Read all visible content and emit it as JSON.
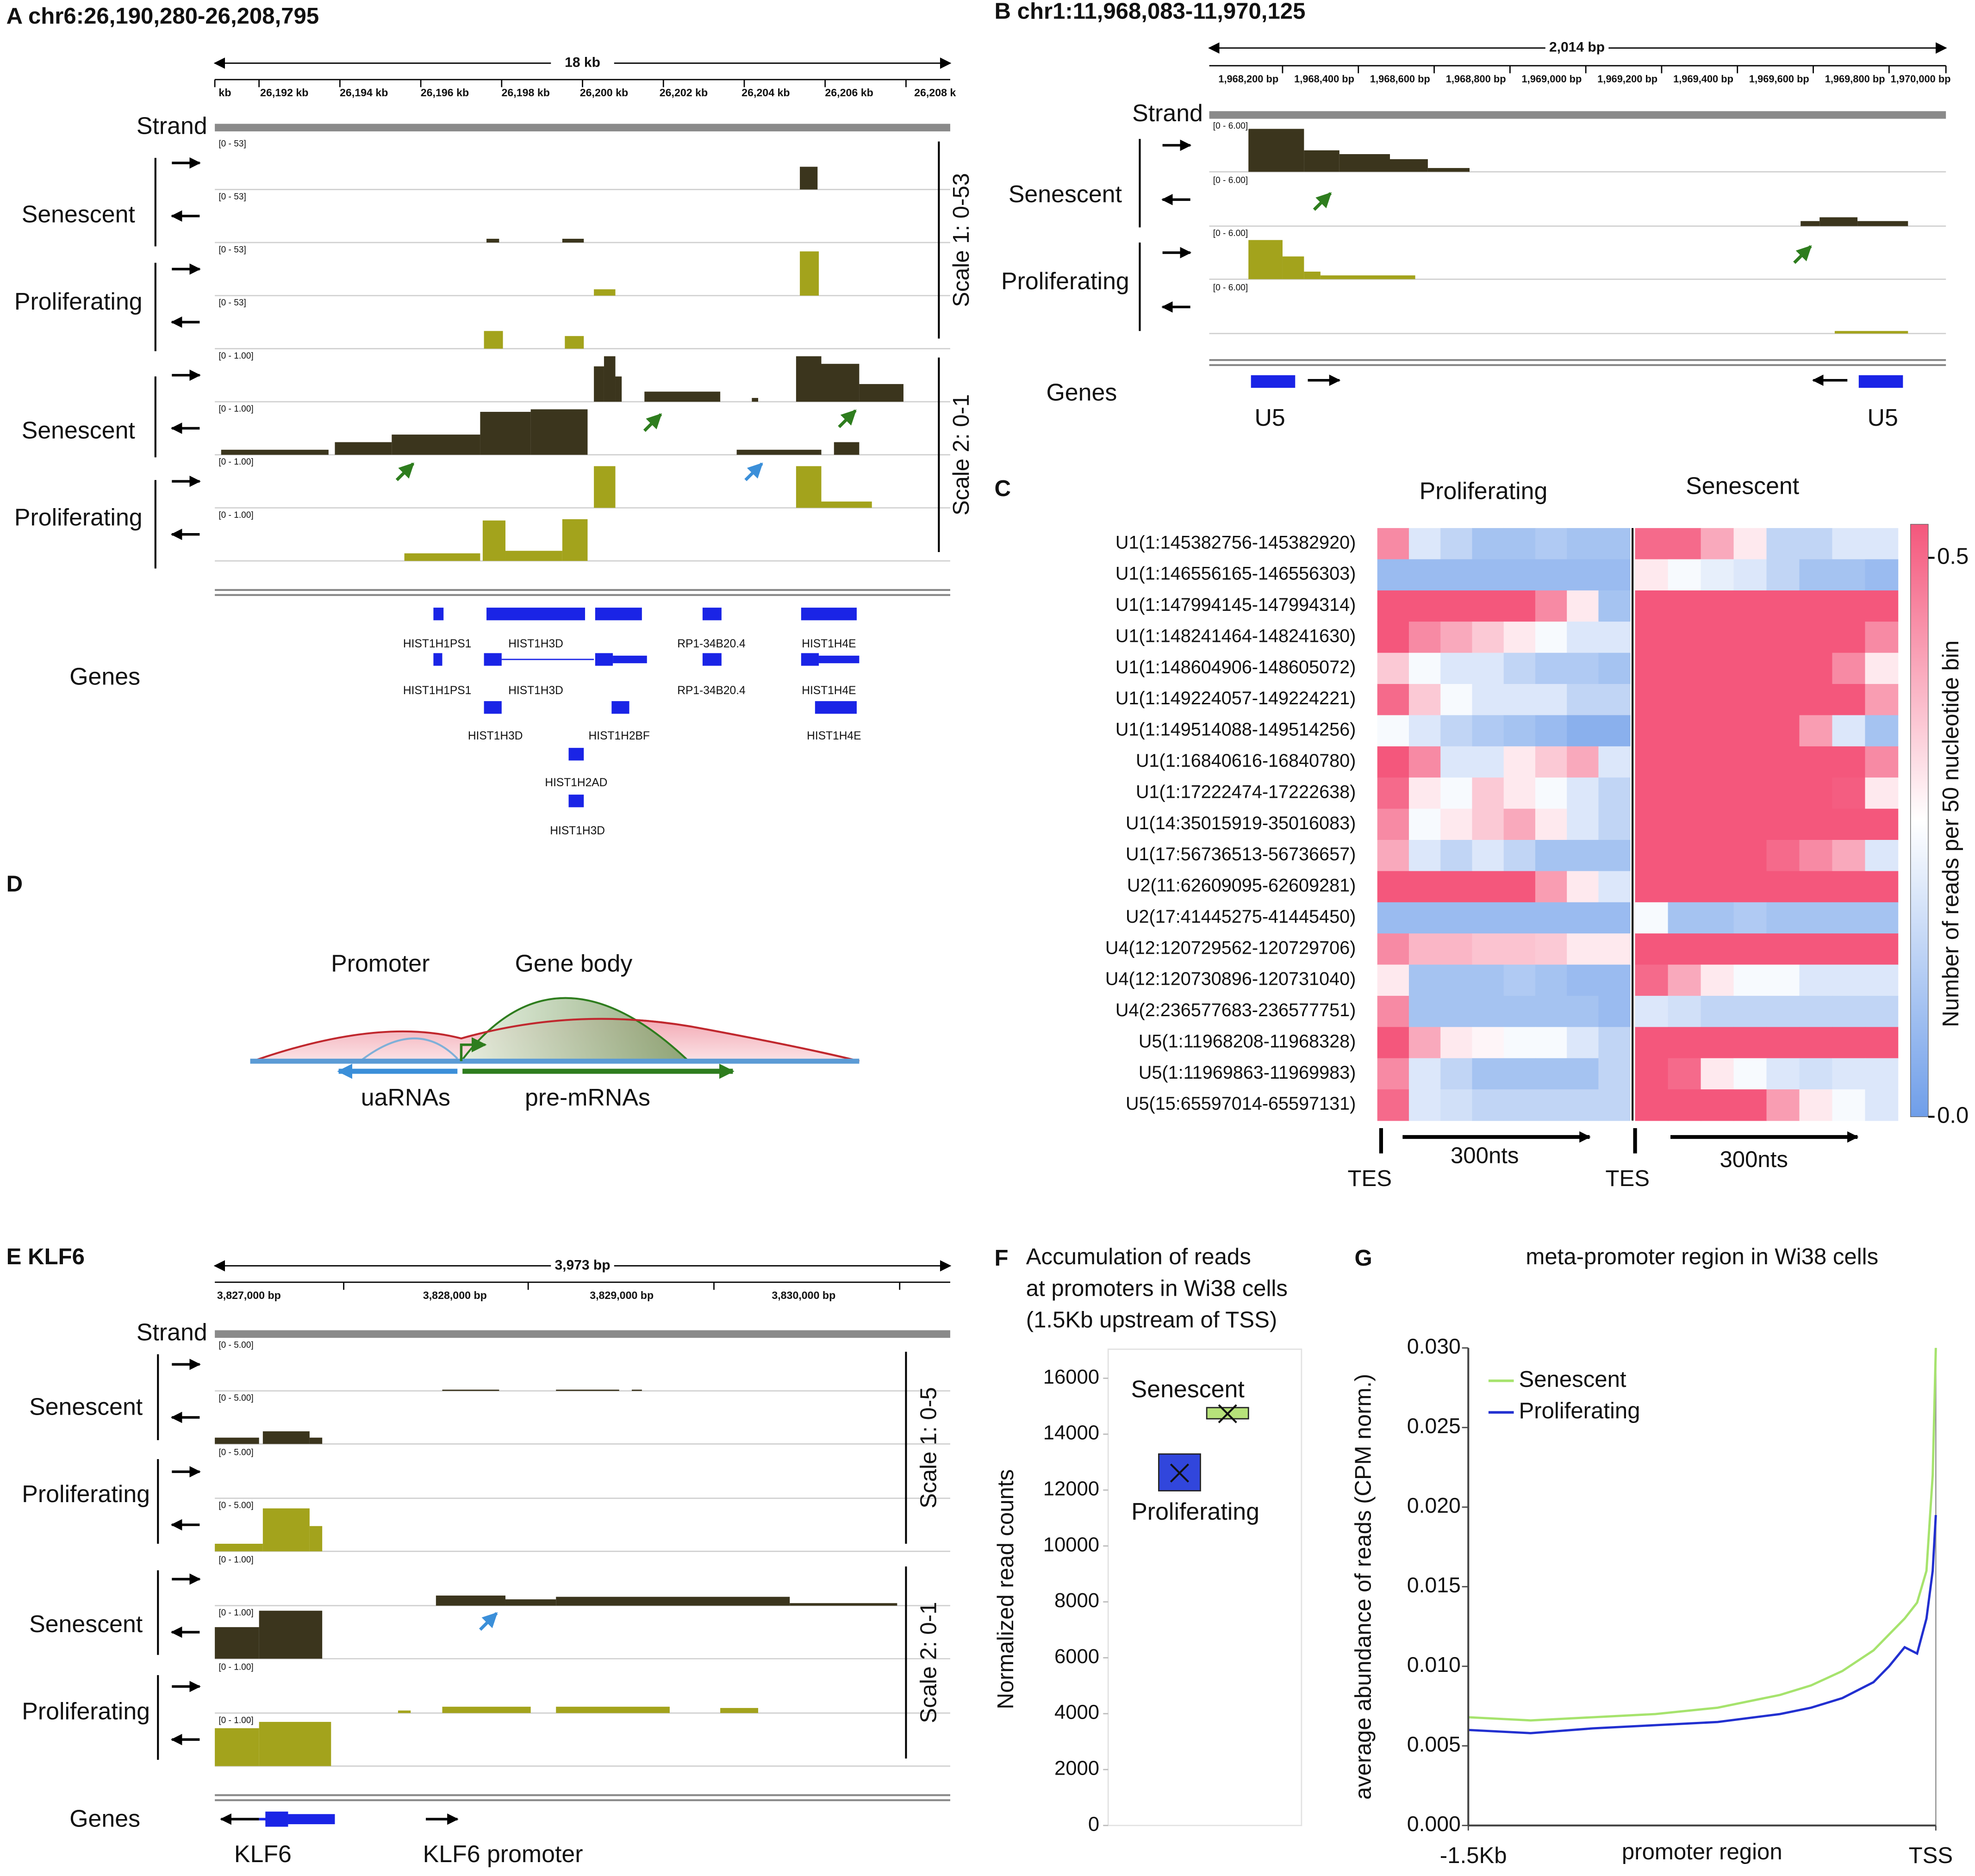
{
  "panels": {
    "a": {
      "title": "A chr6:26,190,280-26,208,795",
      "span": "18 kb",
      "ruler": [
        "kb",
        "26,192 kb",
        "26,194 kb",
        "26,196 kb",
        "26,198 kb",
        "26,200 kb",
        "26,202 kb",
        "26,204 kb",
        "26,206 kb",
        "26,208 k"
      ],
      "strand": "Strand",
      "groups": [
        "Senescent",
        "Proliferating",
        "Senescent",
        "Proliferating"
      ],
      "scales": [
        "Scale 1: 0-53",
        "Scale 2: 0-1"
      ],
      "track_ranges": [
        "[0 - 53]",
        "[0 - 53]",
        "[0 - 53]",
        "[0 - 53]",
        "[0 - 1.00]",
        "[0 - 1.00]",
        "[0 - 1.00]",
        "[0 - 1.00]"
      ],
      "genes_label": "Genes",
      "genes": [
        "HIST1H1PS1",
        "HIST1H3D",
        "RP1-34B20.4",
        "HIST1H4E",
        "HIST1H1PS1",
        "HIST1H3D",
        "RP1-34B20.4",
        "HIST1H4E",
        "HIST1H3D",
        "HIST1H2BF",
        "HIST1H4E",
        "HIST1H2AD",
        "HIST1H3D"
      ]
    },
    "b": {
      "title": "B chr1:11,968,083-11,970,125",
      "span": "2,014 bp",
      "ruler": [
        "1,968,200 bp",
        "1,968,400 bp",
        "1,968,600 bp",
        "1,968,800 bp",
        "1,969,000 bp",
        "1,969,200 bp",
        "1,969,400 bp",
        "1,969,600 bp",
        "1,969,800 bp",
        "1,970,000 bp"
      ],
      "strand": "Strand",
      "groups": [
        "Senescent",
        "Proliferating"
      ],
      "track_ranges": [
        "[0 - 6.00]",
        "[0 - 6.00]",
        "[0 - 6.00]",
        "[0 - 6.00]"
      ],
      "genes_label": "Genes",
      "genes": [
        "U5",
        "U5"
      ]
    },
    "d": {
      "label": "D",
      "promoter": "Promoter",
      "gene_body": "Gene body",
      "uarnas": "uaRNAs",
      "pre_mrnas": "pre-mRNAs"
    },
    "e": {
      "title": "E KLF6",
      "span": "3,973 bp",
      "ruler": [
        "3,827,000 bp",
        "3,828,000 bp",
        "3,829,000 bp",
        "3,830,000 bp"
      ],
      "strand": "Strand",
      "groups": [
        "Senescent",
        "Proliferating",
        "Senescent",
        "Proliferating"
      ],
      "scales": [
        "Scale 1: 0-5",
        "Scale 2: 0-1"
      ],
      "track_ranges": [
        "[0 - 5.00]",
        "[0 - 5.00]",
        "[0 - 5.00]",
        "[0 - 5.00]",
        "[0 - 1.00]",
        "[0 - 1.00]",
        "[0 - 1.00]",
        "[0 - 1.00]"
      ],
      "genes_label": "Genes",
      "genes": [
        "KLF6",
        "KLF6 promoter"
      ]
    }
  },
  "chart_data": [
    {
      "type": "heatmap",
      "label": "C",
      "columns": [
        "Proliferating",
        "Senescent"
      ],
      "rows": [
        "U1(1:145382756-145382920)",
        "U1(1:146556165-146556303)",
        "U1(1:147994145-147994314)",
        "U1(1:148241464-148241630)",
        "U1(1:148604906-148605072)",
        "U1(1:149224057-149224221)",
        "U1(1:149514088-149514256)",
        "U1(1:16840616-16840780)",
        "U1(1:17222474-17222638)",
        "U1(14:35015919-35016083)",
        "U1(17:56736513-56736657)",
        "U2(11:62609095-62609281)",
        "U2(17:41445275-41445450)",
        "U4(12:120729562-120729706)",
        "U4(12:120730896-120731040)",
        "U4(2:236577683-236577751)",
        "U5(1:11968208-11968328)",
        "U5(1:11969863-11969983)",
        "U5(15:65597014-65597131)"
      ],
      "values": [
        [
          0.45,
          0.2,
          0.15,
          0.1,
          0.1,
          0.12,
          0.1,
          0.1,
          0.5,
          0.5,
          0.4,
          0.3,
          0.15,
          0.15,
          0.2,
          0.2
        ],
        [
          0.08,
          0.08,
          0.08,
          0.08,
          0.08,
          0.08,
          0.08,
          0.08,
          0.3,
          0.25,
          0.22,
          0.2,
          0.15,
          0.1,
          0.1,
          0.08
        ],
        [
          0.53,
          0.53,
          0.53,
          0.53,
          0.53,
          0.45,
          0.3,
          0.1,
          0.53,
          0.53,
          0.53,
          0.53,
          0.53,
          0.53,
          0.53,
          0.53
        ],
        [
          0.53,
          0.45,
          0.4,
          0.35,
          0.3,
          0.25,
          0.2,
          0.2,
          0.53,
          0.53,
          0.53,
          0.53,
          0.53,
          0.53,
          0.53,
          0.45
        ],
        [
          0.35,
          0.25,
          0.2,
          0.2,
          0.15,
          0.12,
          0.12,
          0.1,
          0.53,
          0.53,
          0.53,
          0.53,
          0.53,
          0.53,
          0.45,
          0.3
        ],
        [
          0.5,
          0.35,
          0.25,
          0.2,
          0.2,
          0.2,
          0.15,
          0.15,
          0.53,
          0.53,
          0.53,
          0.53,
          0.53,
          0.53,
          0.53,
          0.42
        ],
        [
          0.25,
          0.2,
          0.15,
          0.12,
          0.1,
          0.08,
          0.05,
          0.05,
          0.53,
          0.53,
          0.53,
          0.53,
          0.53,
          0.42,
          0.2,
          0.1
        ],
        [
          0.53,
          0.45,
          0.2,
          0.2,
          0.3,
          0.35,
          0.4,
          0.2,
          0.53,
          0.53,
          0.53,
          0.53,
          0.53,
          0.53,
          0.53,
          0.45
        ],
        [
          0.5,
          0.3,
          0.25,
          0.35,
          0.3,
          0.25,
          0.2,
          0.15,
          0.53,
          0.53,
          0.53,
          0.53,
          0.53,
          0.53,
          0.52,
          0.3
        ],
        [
          0.45,
          0.25,
          0.3,
          0.35,
          0.4,
          0.3,
          0.2,
          0.15,
          0.53,
          0.53,
          0.53,
          0.53,
          0.53,
          0.53,
          0.53,
          0.53
        ],
        [
          0.4,
          0.2,
          0.15,
          0.2,
          0.15,
          0.1,
          0.1,
          0.1,
          0.53,
          0.53,
          0.53,
          0.53,
          0.5,
          0.45,
          0.4,
          0.2
        ],
        [
          0.53,
          0.53,
          0.53,
          0.53,
          0.53,
          0.42,
          0.3,
          0.2,
          0.53,
          0.53,
          0.53,
          0.53,
          0.53,
          0.53,
          0.53,
          0.53
        ],
        [
          0.08,
          0.08,
          0.08,
          0.08,
          0.08,
          0.08,
          0.08,
          0.08,
          0.25,
          0.1,
          0.1,
          0.12,
          0.1,
          0.1,
          0.1,
          0.1
        ],
        [
          0.45,
          0.38,
          0.38,
          0.36,
          0.36,
          0.35,
          0.3,
          0.3,
          0.53,
          0.53,
          0.53,
          0.53,
          0.53,
          0.53,
          0.53,
          0.53
        ],
        [
          0.3,
          0.1,
          0.1,
          0.1,
          0.12,
          0.1,
          0.08,
          0.08,
          0.5,
          0.4,
          0.3,
          0.25,
          0.25,
          0.2,
          0.2,
          0.2
        ],
        [
          0.45,
          0.1,
          0.1,
          0.1,
          0.1,
          0.1,
          0.1,
          0.08,
          0.2,
          0.18,
          0.15,
          0.15,
          0.15,
          0.15,
          0.15,
          0.15
        ],
        [
          0.53,
          0.4,
          0.3,
          0.28,
          0.25,
          0.25,
          0.2,
          0.15,
          0.53,
          0.53,
          0.53,
          0.53,
          0.53,
          0.53,
          0.53,
          0.53
        ],
        [
          0.45,
          0.2,
          0.15,
          0.1,
          0.1,
          0.1,
          0.1,
          0.15,
          0.53,
          0.5,
          0.3,
          0.25,
          0.2,
          0.18,
          0.2,
          0.2
        ],
        [
          0.5,
          0.2,
          0.18,
          0.15,
          0.15,
          0.15,
          0.15,
          0.15,
          0.53,
          0.53,
          0.53,
          0.53,
          0.42,
          0.3,
          0.25,
          0.2
        ]
      ],
      "zlim": [
        0,
        0.53
      ],
      "zticks": [
        {
          "value": 0,
          "label": "0.0"
        },
        0.5
      ],
      "colors": [
        "#6f9ee9",
        "#ffffff",
        "#f4577c"
      ],
      "colorbar_label": "Number of reads per 50 nucleotide bin",
      "x_annotations": [
        "TES",
        "300nts",
        "TES",
        "300nts"
      ]
    },
    {
      "type": "box",
      "label": "F",
      "title": [
        "Accumulation of reads",
        "at promoters in Wi38 cells",
        "(1.5Kb upstream of TSS)"
      ],
      "ylabel": "Normalized read counts",
      "ylim": [
        0,
        16000
      ],
      "yticks": [
        0,
        2000,
        4000,
        6000,
        8000,
        10000,
        12000,
        14000,
        16000
      ],
      "series": [
        {
          "name": "Senescent",
          "color": "#b7e27a",
          "q1": 14550,
          "q3": 14950,
          "mean": 14730
        },
        {
          "name": "Proliferating",
          "color": "#3146dc",
          "q1": 11975,
          "q3": 13290,
          "mean": 12610
        }
      ]
    },
    {
      "type": "line",
      "label": "G",
      "title": "meta-promoter region in Wi38 cells",
      "ylabel": "average abundance of reads (CPM norm.)",
      "xlabel": "promoter region",
      "x": [
        -1500,
        -1300,
        -1100,
        -900,
        -700,
        -500,
        -400,
        -300,
        -200,
        -150,
        -100,
        -60,
        -30,
        -10,
        0
      ],
      "xlim": [
        -1500,
        0
      ],
      "xticks": [
        {
          "value": -1500,
          "label": "-1.5Kb"
        },
        {
          "value": 0,
          "label": "TSS"
        }
      ],
      "ylim": [
        0,
        0.03
      ],
      "yticks": [
        {
          "value": 0,
          "label": "0.000"
        },
        {
          "value": 0.005,
          "label": "0.005"
        },
        {
          "value": 0.01,
          "label": "0.010"
        },
        {
          "value": 0.015,
          "label": "0.015"
        },
        {
          "value": 0.02,
          "label": "0.020"
        },
        {
          "value": 0.025,
          "label": "0.025"
        },
        {
          "value": 0.03,
          "label": "0.030"
        }
      ],
      "series": [
        {
          "name": "Senescent",
          "color": "#a6e36d",
          "values": [
            0.0068,
            0.0066,
            0.0068,
            0.007,
            0.0074,
            0.0082,
            0.0088,
            0.0097,
            0.011,
            0.012,
            0.013,
            0.014,
            0.016,
            0.022,
            0.03
          ]
        },
        {
          "name": "Proliferating",
          "color": "#2230d0",
          "values": [
            0.006,
            0.0058,
            0.0061,
            0.0063,
            0.0065,
            0.007,
            0.0074,
            0.008,
            0.009,
            0.01,
            0.0112,
            0.0108,
            0.013,
            0.016,
            0.0195
          ]
        }
      ]
    }
  ]
}
